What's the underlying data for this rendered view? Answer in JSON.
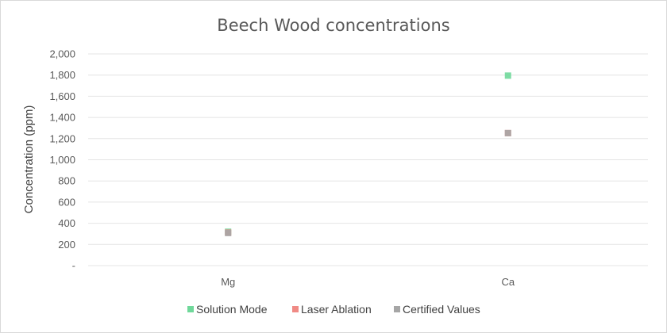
{
  "chart_data": {
    "type": "scatter",
    "title": "Beech Wood concentrations",
    "xlabel": "",
    "ylabel": "Concentration (ppm)",
    "categories": [
      "Mg",
      "Ca"
    ],
    "ylim": [
      0,
      2000
    ],
    "y_ticks": [
      {
        "value": 0,
        "label": "-"
      },
      {
        "value": 200,
        "label": "200"
      },
      {
        "value": 400,
        "label": "400"
      },
      {
        "value": 600,
        "label": "600"
      },
      {
        "value": 800,
        "label": "800"
      },
      {
        "value": 1000,
        "label": "1,000"
      },
      {
        "value": 1200,
        "label": "1,200"
      },
      {
        "value": 1400,
        "label": "1,400"
      },
      {
        "value": 1600,
        "label": "1,600"
      },
      {
        "value": 1800,
        "label": "1,800"
      },
      {
        "value": 2000,
        "label": "2,000"
      }
    ],
    "grid": true,
    "legend_position": "bottom",
    "series": [
      {
        "name": "Solution Mode",
        "color": "#6fd89a",
        "values": [
          320,
          1795
        ]
      },
      {
        "name": "Laser Ablation",
        "color": "#f08a85",
        "values": [
          312,
          1252
        ]
      },
      {
        "name": "Certified Values",
        "color": "#a6a6a6",
        "values": [
          308,
          1252
        ]
      }
    ]
  }
}
